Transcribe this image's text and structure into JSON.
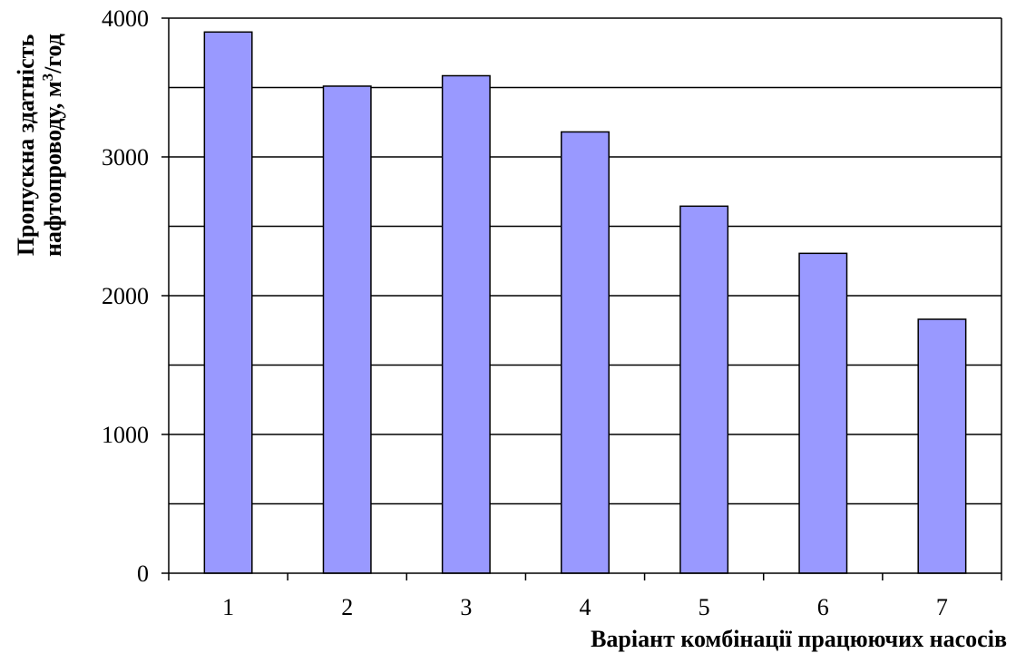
{
  "chart_data": {
    "type": "bar",
    "categories": [
      "1",
      "2",
      "3",
      "4",
      "5",
      "6",
      "7"
    ],
    "values": [
      3900,
      3510,
      3585,
      3180,
      2645,
      2305,
      1830
    ],
    "xlabel": "Варіант комбінації працюючих насосів",
    "ylabel_line1": "Пропускна здатність",
    "ylabel_line2_prefix": "нафтопроводу, м",
    "ylabel_superscript": "3",
    "ylabel_line2_suffix": "/год",
    "ylim": [
      0,
      4000
    ],
    "y_ticks": [
      "0",
      "1000",
      "2000",
      "3000",
      "4000"
    ],
    "y_tick_values": [
      0,
      1000,
      2000,
      3000,
      4000
    ],
    "y_gridline_values": [
      500,
      1000,
      1500,
      2000,
      2500,
      3000,
      3500,
      4000
    ],
    "grid": true,
    "legend": "none",
    "colors": {
      "bar_fill": "#9999ff",
      "bar_stroke": "#000000",
      "gridline": "#000000",
      "background": "#ffffff"
    }
  }
}
